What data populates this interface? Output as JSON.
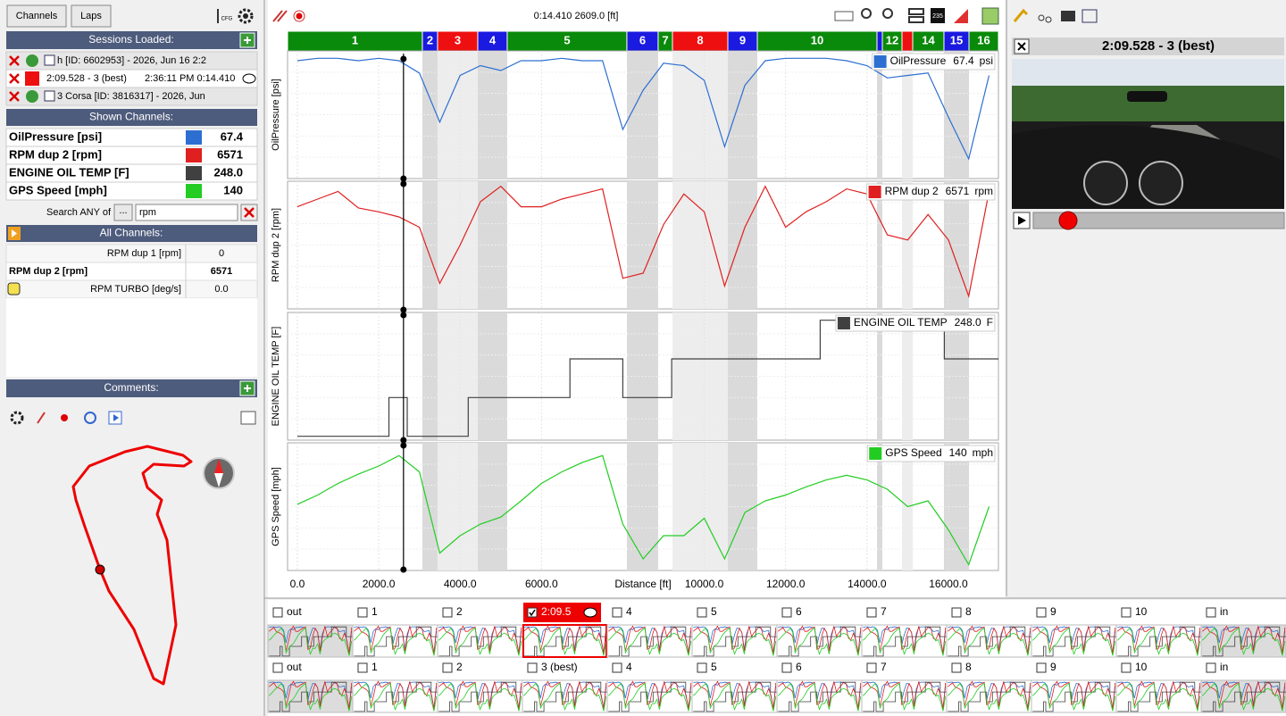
{
  "toolbar": {
    "tabs": [
      "Channels",
      "Laps"
    ],
    "cfg": "CFG",
    "badge": "235"
  },
  "left_panel": {
    "sessions_header": "Sessions Loaded:",
    "sessions": [
      {
        "text": "h [ID: 6602953] - 2026, Jun 16 2:2"
      },
      {
        "text": "2:09.528 - 3 (best)",
        "time": "2:36:11 PM 0:14.410"
      },
      {
        "text": "3 Corsa [ID: 3816317] - 2026, Jun"
      }
    ],
    "shown_header": "Shown Channels:",
    "shown_channels": [
      {
        "name": "OilPressure [psi]",
        "color": "#2d6fd1",
        "value": "67.4"
      },
      {
        "name": "RPM dup 2 [rpm]",
        "color": "#e02020",
        "value": "6571"
      },
      {
        "name": "ENGINE OIL TEMP [F]",
        "color": "#404040",
        "value": "248.0"
      },
      {
        "name": "GPS Speed [mph]",
        "color": "#22cc22",
        "value": "140"
      }
    ],
    "search": {
      "label": "Search ANY of",
      "button": "...",
      "query": "rpm"
    },
    "all_header": "All Channels:",
    "all_channels": [
      {
        "name": "RPM dup 1 [rpm]",
        "value": "0"
      },
      {
        "name": "RPM dup 2 [rpm]",
        "value": "6571"
      },
      {
        "name": "RPM TURBO [deg/s]",
        "value": "0.0"
      }
    ],
    "comments_header": "Comments:"
  },
  "cursor": {
    "readout": "0:14.410 2609.0 [ft]",
    "distance": 2609.0
  },
  "segments": {
    "edges": [
      -240,
      3073,
      3446,
      4434,
      5158,
      8099,
      8867,
      9219,
      10580,
      11304,
      14245,
      14377,
      14860,
      15123,
      15891,
      16506,
      17230
    ],
    "labels": [
      "1",
      "2",
      "3",
      "4",
      "5",
      "6",
      "7",
      "8",
      "9",
      "10",
      null,
      "12",
      null,
      "14",
      "15",
      "16"
    ],
    "colors": [
      "#0a8a0a",
      "#1a1ae0",
      "#ee1010",
      "#1a1ae0",
      "#0a8a0a",
      "#1a1ae0",
      "#0a8a0a",
      "#ee1010",
      "#1a1ae0",
      "#0a8a0a",
      "#1a1ae0",
      "#0a8a0a",
      "#ee1010",
      "#0a8a0a",
      "#1a1ae0",
      "#0a8a0a"
    ]
  },
  "chart_data": [
    {
      "type": "line",
      "y_label": "OilPressure [psi]",
      "xlim": [
        -240,
        17230
      ],
      "ylim": [
        20,
        72
      ],
      "x": [
        0,
        500,
        1000,
        1500,
        2000,
        2500,
        3000,
        3500,
        4000,
        4500,
        5000,
        5500,
        6000,
        6500,
        7000,
        7500,
        8000,
        8500,
        9000,
        9500,
        10000,
        10500,
        11000,
        11500,
        12000,
        12500,
        13000,
        13500,
        14000,
        14500,
        15000,
        15500,
        16000,
        16500,
        17000
      ],
      "series": [
        {
          "name": "OilPressure",
          "readout": "67.4",
          "unit": "psi",
          "color": "#2d6fd1",
          "values": [
            68,
            69,
            69,
            68,
            69,
            68,
            63,
            43,
            62,
            66,
            64,
            68,
            68,
            69,
            68,
            68,
            40,
            56,
            67,
            66,
            60,
            33,
            58,
            68,
            69,
            69,
            69,
            68,
            66,
            61,
            62,
            63,
            45,
            28,
            62
          ]
        }
      ]
    },
    {
      "type": "line",
      "y_label": "RPM dup 2 [rpm]",
      "xlim": [
        -240,
        17230
      ],
      "ylim": [
        3000,
        8000
      ],
      "x": [
        0,
        500,
        1000,
        1500,
        2000,
        2500,
        3000,
        3500,
        4000,
        4500,
        5000,
        5500,
        6000,
        6500,
        7000,
        7500,
        8000,
        8500,
        9000,
        9500,
        10000,
        10500,
        11000,
        11500,
        12000,
        12500,
        13000,
        13500,
        14000,
        14500,
        15000,
        15500,
        16000,
        16500,
        17000
      ],
      "series": [
        {
          "name": "RPM dup 2",
          "readout": "6571",
          "unit": "rpm",
          "color": "#e02020",
          "values": [
            7000,
            7300,
            7600,
            6950,
            6800,
            6600,
            6200,
            4000,
            5500,
            7200,
            7800,
            7000,
            7000,
            7300,
            7500,
            7700,
            4200,
            4400,
            6300,
            7500,
            6800,
            3900,
            6200,
            7800,
            6200,
            6800,
            7200,
            7700,
            7500,
            5900,
            5700,
            6700,
            5700,
            3500,
            7600
          ]
        }
      ]
    },
    {
      "type": "line",
      "y_label": "ENGINE OIL TEMP [F]",
      "xlim": [
        -240,
        17230
      ],
      "ylim": [
        246.9,
        250.2
      ],
      "x": [
        0,
        2250,
        2250,
        2700,
        2700,
        4200,
        4200,
        6700,
        6700,
        8000,
        8000,
        9200,
        9200,
        12850,
        12850,
        15900,
        15900,
        17230
      ],
      "series": [
        {
          "name": "ENGINE OIL TEMP",
          "readout": "248.0",
          "unit": "F",
          "color": "#404040",
          "values": [
            247,
            247,
            248,
            248,
            247,
            247,
            248,
            248,
            249,
            249,
            248,
            248,
            249,
            249,
            250,
            250,
            249,
            249
          ]
        }
      ]
    },
    {
      "type": "line",
      "y_label": "GPS Speed [mph]",
      "xlim": [
        -240,
        17230
      ],
      "ylim": [
        40,
        150
      ],
      "x_label": "Distance [ft]",
      "xticks": [
        {
          "value": 0,
          "label": "0.0"
        },
        {
          "value": 2000,
          "label": "2000.0"
        },
        {
          "value": 4000,
          "label": "4000.0"
        },
        {
          "value": 6000,
          "label": "6000.0"
        },
        {
          "value": 10000,
          "label": "10000.0"
        },
        {
          "value": 12000,
          "label": "12000.0"
        },
        {
          "value": 14000,
          "label": "14000.0"
        },
        {
          "value": 16000,
          "label": "16000.0"
        }
      ],
      "x": [
        0,
        500,
        1000,
        1500,
        2000,
        2500,
        3000,
        3500,
        4000,
        4500,
        5000,
        5500,
        6000,
        6500,
        7000,
        7500,
        8000,
        8500,
        9000,
        9500,
        10000,
        10500,
        11000,
        11500,
        12000,
        12500,
        13000,
        13500,
        14000,
        14500,
        15000,
        15500,
        16000,
        16500,
        17000
      ],
      "series": [
        {
          "name": "GPS Speed",
          "readout": "140",
          "unit": "mph",
          "color": "#22cc22",
          "values": [
            97,
            105,
            115,
            123,
            130,
            139,
            125,
            55,
            70,
            80,
            86,
            100,
            115,
            125,
            133,
            139,
            80,
            50,
            70,
            70,
            85,
            50,
            90,
            100,
            105,
            112,
            118,
            122,
            118,
            110,
            95,
            100,
            75,
            45,
            95
          ]
        }
      ]
    }
  ],
  "video": {
    "title": "2:09.528 - 3 (best)"
  },
  "laps": {
    "rows": [
      [
        {
          "label": "out"
        },
        {
          "label": "1"
        },
        {
          "label": "2"
        },
        {
          "label": "2:09.5",
          "checked": true
        },
        {
          "label": "4"
        },
        {
          "label": "5"
        },
        {
          "label": "6"
        },
        {
          "label": "7"
        },
        {
          "label": "8"
        },
        {
          "label": "9"
        },
        {
          "label": "10"
        },
        {
          "label": "in"
        }
      ],
      [
        {
          "label": "out"
        },
        {
          "label": "1"
        },
        {
          "label": "2"
        },
        {
          "label": "3 (best)"
        },
        {
          "label": "4"
        },
        {
          "label": "5"
        },
        {
          "label": "6"
        },
        {
          "label": "7"
        },
        {
          "label": "8"
        },
        {
          "label": "9"
        },
        {
          "label": "10"
        },
        {
          "label": "in"
        }
      ]
    ]
  }
}
